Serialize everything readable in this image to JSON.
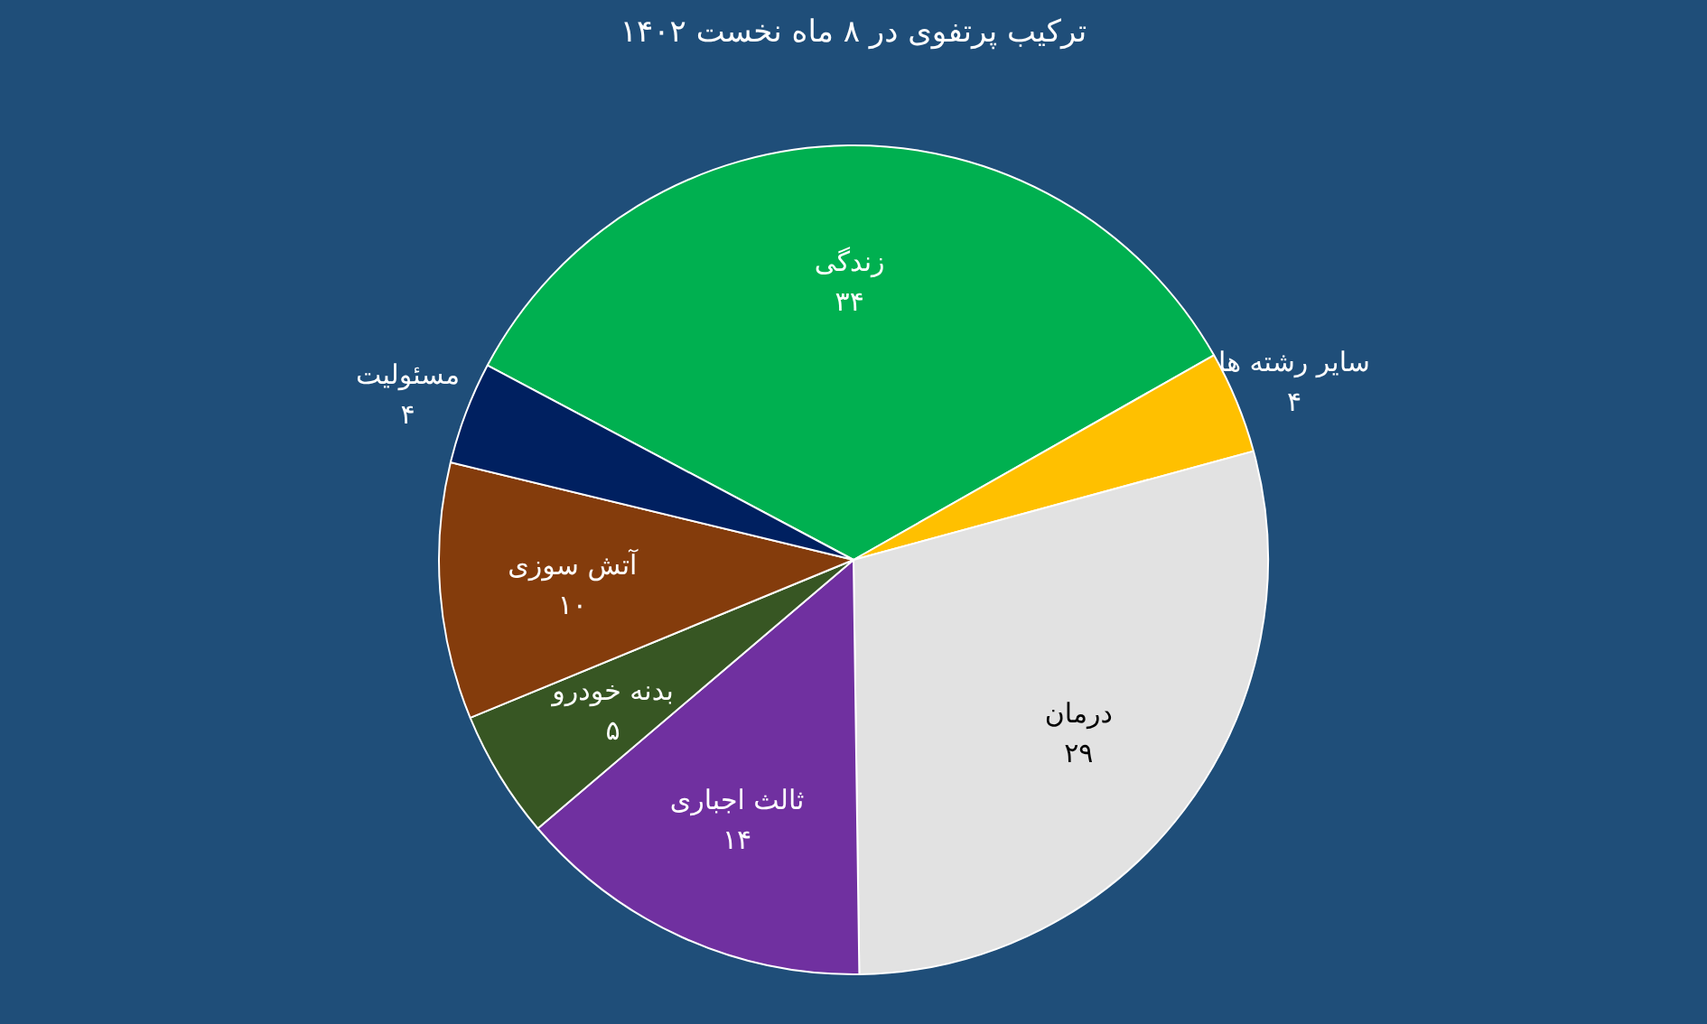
{
  "chart_data": {
    "type": "pie",
    "title": "ترکیب پرتفوی در ۸ ماه نخست ۱۴۰۲",
    "categories": [
      "زندگی",
      "سایر رشته ها",
      "درمان",
      "ثالث اجباری",
      "بدنه خودرو",
      "آتش سوزی",
      "مسئولیت"
    ],
    "values": [
      34,
      4,
      29,
      14,
      5,
      10,
      4
    ],
    "colors": [
      "#00b050",
      "#ffc000",
      "#e2e2e2",
      "#7030a0",
      "#375623",
      "#843c0c",
      "#002060"
    ],
    "value_labels": [
      "۳۴",
      "۴",
      "۲۹",
      "۱۴",
      "۵",
      "۱۰",
      "۴"
    ],
    "legend": false
  }
}
